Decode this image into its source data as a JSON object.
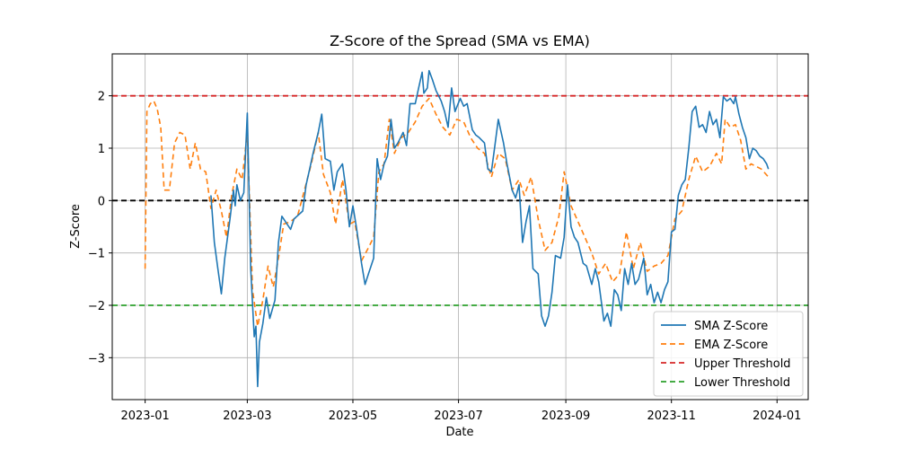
{
  "chart_data": {
    "type": "line",
    "title": "Z-Score of the Spread (SMA vs EMA)",
    "xlabel": "Date",
    "ylabel": "Z-Score",
    "xlim": [
      "2022-12-13",
      "2024-01-19"
    ],
    "ylim": [
      -3.8,
      2.8
    ],
    "x_ticks": [
      "2023-01-01",
      "2023-03-01",
      "2023-05-01",
      "2023-07-01",
      "2023-09-01",
      "2023-11-01",
      "2024-01-01"
    ],
    "x_tick_labels": [
      "2023-01",
      "2023-03",
      "2023-05",
      "2023-07",
      "2023-09",
      "2023-11",
      "2024-01"
    ],
    "y_ticks": [
      -3,
      -2,
      -1,
      0,
      1,
      2
    ],
    "y_tick_labels": [
      "−3",
      "−2",
      "−1",
      "0",
      "1",
      "2"
    ],
    "grid": true,
    "legend_position": "bottom-right",
    "hlines": [
      {
        "name": "Upper Threshold",
        "y": 2,
        "color": "#d62728",
        "style": "dashed"
      },
      {
        "name": "Lower Threshold",
        "y": -2,
        "color": "#2ca02c",
        "style": "dashed"
      },
      {
        "name": "",
        "y": 0,
        "color": "#000000",
        "style": "dashed"
      }
    ],
    "series": [
      {
        "name": "SMA Z-Score",
        "color": "#1f77b4",
        "style": "solid",
        "points": [
          [
            "2023-02-08",
            0.1
          ],
          [
            "2023-02-10",
            -0.8
          ],
          [
            "2023-02-12",
            -1.3
          ],
          [
            "2023-02-14",
            -1.78
          ],
          [
            "2023-02-16",
            -1.1
          ],
          [
            "2023-02-19",
            -0.35
          ],
          [
            "2023-02-21",
            0.2
          ],
          [
            "2023-02-22",
            -0.1
          ],
          [
            "2023-02-23",
            0.3
          ],
          [
            "2023-02-25",
            0.0
          ],
          [
            "2023-02-27",
            0.15
          ],
          [
            "2023-03-01",
            1.67
          ],
          [
            "2023-03-03",
            -1.3
          ],
          [
            "2023-03-05",
            -2.6
          ],
          [
            "2023-03-06",
            -2.4
          ],
          [
            "2023-03-07",
            -3.55
          ],
          [
            "2023-03-08",
            -2.7
          ],
          [
            "2023-03-10",
            -2.35
          ],
          [
            "2023-03-12",
            -1.85
          ],
          [
            "2023-03-14",
            -2.25
          ],
          [
            "2023-03-17",
            -1.9
          ],
          [
            "2023-03-19",
            -0.8
          ],
          [
            "2023-03-21",
            -0.3
          ],
          [
            "2023-03-23",
            -0.4
          ],
          [
            "2023-03-26",
            -0.55
          ],
          [
            "2023-03-28",
            -0.35
          ],
          [
            "2023-04-02",
            -0.2
          ],
          [
            "2023-04-04",
            0.3
          ],
          [
            "2023-04-06",
            0.6
          ],
          [
            "2023-04-08",
            0.9
          ],
          [
            "2023-04-11",
            1.3
          ],
          [
            "2023-04-13",
            1.65
          ],
          [
            "2023-04-15",
            0.8
          ],
          [
            "2023-04-18",
            0.75
          ],
          [
            "2023-04-20",
            0.2
          ],
          [
            "2023-04-22",
            0.55
          ],
          [
            "2023-04-25",
            0.7
          ],
          [
            "2023-04-27",
            0.2
          ],
          [
            "2023-04-29",
            -0.5
          ],
          [
            "2023-05-01",
            -0.1
          ],
          [
            "2023-05-03",
            -0.5
          ],
          [
            "2023-05-06",
            -1.2
          ],
          [
            "2023-05-08",
            -1.6
          ],
          [
            "2023-05-10",
            -1.4
          ],
          [
            "2023-05-13",
            -1.1
          ],
          [
            "2023-05-15",
            0.8
          ],
          [
            "2023-05-17",
            0.4
          ],
          [
            "2023-05-19",
            0.7
          ],
          [
            "2023-05-21",
            0.85
          ],
          [
            "2023-05-23",
            1.55
          ],
          [
            "2023-05-25",
            1.0
          ],
          [
            "2023-05-27",
            1.1
          ],
          [
            "2023-05-30",
            1.3
          ],
          [
            "2023-06-01",
            1.05
          ],
          [
            "2023-06-03",
            1.85
          ],
          [
            "2023-06-06",
            1.85
          ],
          [
            "2023-06-08",
            2.15
          ],
          [
            "2023-06-10",
            2.45
          ],
          [
            "2023-06-11",
            2.05
          ],
          [
            "2023-06-13",
            2.15
          ],
          [
            "2023-06-14",
            2.48
          ],
          [
            "2023-06-16",
            2.3
          ],
          [
            "2023-06-18",
            2.1
          ],
          [
            "2023-06-21",
            1.9
          ],
          [
            "2023-06-23",
            1.7
          ],
          [
            "2023-06-25",
            1.4
          ],
          [
            "2023-06-27",
            2.15
          ],
          [
            "2023-06-29",
            1.7
          ],
          [
            "2023-07-02",
            1.95
          ],
          [
            "2023-07-04",
            1.8
          ],
          [
            "2023-07-06",
            1.85
          ],
          [
            "2023-07-09",
            1.35
          ],
          [
            "2023-07-11",
            1.25
          ],
          [
            "2023-07-13",
            1.2
          ],
          [
            "2023-07-16",
            1.1
          ],
          [
            "2023-07-18",
            0.6
          ],
          [
            "2023-07-20",
            0.55
          ],
          [
            "2023-07-22",
            1.05
          ],
          [
            "2023-07-24",
            1.55
          ],
          [
            "2023-07-27",
            1.1
          ],
          [
            "2023-07-29",
            0.7
          ],
          [
            "2023-08-01",
            0.2
          ],
          [
            "2023-08-03",
            0.05
          ],
          [
            "2023-08-05",
            0.3
          ],
          [
            "2023-08-07",
            -0.8
          ],
          [
            "2023-08-09",
            -0.4
          ],
          [
            "2023-08-11",
            -0.1
          ],
          [
            "2023-08-13",
            -1.3
          ],
          [
            "2023-08-16",
            -1.4
          ],
          [
            "2023-08-18",
            -2.2
          ],
          [
            "2023-08-20",
            -2.4
          ],
          [
            "2023-08-22",
            -2.2
          ],
          [
            "2023-08-24",
            -1.75
          ],
          [
            "2023-08-26",
            -1.05
          ],
          [
            "2023-08-29",
            -1.1
          ],
          [
            "2023-08-31",
            -0.7
          ],
          [
            "2023-09-02",
            0.3
          ],
          [
            "2023-09-04",
            -0.5
          ],
          [
            "2023-09-06",
            -0.7
          ],
          [
            "2023-09-08",
            -0.8
          ],
          [
            "2023-09-11",
            -1.2
          ],
          [
            "2023-09-13",
            -1.25
          ],
          [
            "2023-09-16",
            -1.6
          ],
          [
            "2023-09-18",
            -1.3
          ],
          [
            "2023-09-20",
            -1.55
          ],
          [
            "2023-09-23",
            -2.3
          ],
          [
            "2023-09-25",
            -2.15
          ],
          [
            "2023-09-27",
            -2.4
          ],
          [
            "2023-09-29",
            -1.7
          ],
          [
            "2023-10-01",
            -1.8
          ],
          [
            "2023-10-03",
            -2.1
          ],
          [
            "2023-10-05",
            -1.3
          ],
          [
            "2023-10-07",
            -1.6
          ],
          [
            "2023-10-09",
            -1.2
          ],
          [
            "2023-10-11",
            -1.6
          ],
          [
            "2023-10-13",
            -1.5
          ],
          [
            "2023-10-16",
            -1.1
          ],
          [
            "2023-10-18",
            -1.8
          ],
          [
            "2023-10-20",
            -1.6
          ],
          [
            "2023-10-22",
            -1.95
          ],
          [
            "2023-10-24",
            -1.75
          ],
          [
            "2023-10-26",
            -1.95
          ],
          [
            "2023-10-28",
            -1.7
          ],
          [
            "2023-10-30",
            -1.55
          ],
          [
            "2023-11-01",
            -0.6
          ],
          [
            "2023-11-03",
            -0.55
          ],
          [
            "2023-11-05",
            0.1
          ],
          [
            "2023-11-07",
            0.3
          ],
          [
            "2023-11-09",
            0.4
          ],
          [
            "2023-11-11",
            1.0
          ],
          [
            "2023-11-13",
            1.7
          ],
          [
            "2023-11-15",
            1.8
          ],
          [
            "2023-11-17",
            1.4
          ],
          [
            "2023-11-19",
            1.45
          ],
          [
            "2023-11-21",
            1.3
          ],
          [
            "2023-11-23",
            1.7
          ],
          [
            "2023-11-25",
            1.45
          ],
          [
            "2023-11-27",
            1.55
          ],
          [
            "2023-11-29",
            1.2
          ],
          [
            "2023-12-01",
            1.98
          ],
          [
            "2023-12-03",
            1.9
          ],
          [
            "2023-12-05",
            1.95
          ],
          [
            "2023-12-07",
            1.85
          ],
          [
            "2023-12-08",
            1.98
          ],
          [
            "2023-12-10",
            1.65
          ],
          [
            "2023-12-12",
            1.4
          ],
          [
            "2023-12-14",
            1.2
          ],
          [
            "2023-12-16",
            0.8
          ],
          [
            "2023-12-18",
            1.0
          ],
          [
            "2023-12-20",
            0.95
          ],
          [
            "2023-12-22",
            0.85
          ],
          [
            "2023-12-24",
            0.8
          ],
          [
            "2023-12-26",
            0.7
          ],
          [
            "2023-12-27",
            0.6
          ]
        ]
      },
      {
        "name": "EMA Z-Score",
        "color": "#ff7f0e",
        "style": "dashed",
        "points": [
          [
            "2023-01-01",
            -1.3
          ],
          [
            "2023-01-02",
            1.7
          ],
          [
            "2023-01-04",
            1.85
          ],
          [
            "2023-01-06",
            1.9
          ],
          [
            "2023-01-08",
            1.75
          ],
          [
            "2023-01-10",
            1.4
          ],
          [
            "2023-01-12",
            0.2
          ],
          [
            "2023-01-15",
            0.2
          ],
          [
            "2023-01-18",
            1.1
          ],
          [
            "2023-01-21",
            1.3
          ],
          [
            "2023-01-24",
            1.25
          ],
          [
            "2023-01-27",
            0.6
          ],
          [
            "2023-01-30",
            1.1
          ],
          [
            "2023-02-02",
            0.6
          ],
          [
            "2023-02-05",
            0.55
          ],
          [
            "2023-02-08",
            -0.15
          ],
          [
            "2023-02-11",
            0.2
          ],
          [
            "2023-02-14",
            -0.2
          ],
          [
            "2023-02-17",
            -0.7
          ],
          [
            "2023-02-20",
            0.1
          ],
          [
            "2023-02-23",
            0.6
          ],
          [
            "2023-02-26",
            0.4
          ],
          [
            "2023-03-01",
            1.3
          ],
          [
            "2023-03-04",
            -1.7
          ],
          [
            "2023-03-07",
            -2.4
          ],
          [
            "2023-03-10",
            -1.9
          ],
          [
            "2023-03-13",
            -1.25
          ],
          [
            "2023-03-16",
            -1.65
          ],
          [
            "2023-03-19",
            -1.1
          ],
          [
            "2023-03-22",
            -0.45
          ],
          [
            "2023-03-26",
            -0.4
          ],
          [
            "2023-03-30",
            -0.3
          ],
          [
            "2023-04-03",
            0.2
          ],
          [
            "2023-04-07",
            0.7
          ],
          [
            "2023-04-11",
            1.3
          ],
          [
            "2023-04-14",
            0.5
          ],
          [
            "2023-04-18",
            0.15
          ],
          [
            "2023-04-21",
            -0.45
          ],
          [
            "2023-04-25",
            0.4
          ],
          [
            "2023-04-29",
            -0.45
          ],
          [
            "2023-05-02",
            -0.4
          ],
          [
            "2023-05-06",
            -1.15
          ],
          [
            "2023-05-10",
            -0.9
          ],
          [
            "2023-05-13",
            -0.7
          ],
          [
            "2023-05-16",
            0.55
          ],
          [
            "2023-05-19",
            0.7
          ],
          [
            "2023-05-22",
            1.55
          ],
          [
            "2023-05-25",
            0.9
          ],
          [
            "2023-05-29",
            1.2
          ],
          [
            "2023-06-02",
            1.3
          ],
          [
            "2023-06-06",
            1.5
          ],
          [
            "2023-06-10",
            1.8
          ],
          [
            "2023-06-14",
            1.95
          ],
          [
            "2023-06-18",
            1.65
          ],
          [
            "2023-06-22",
            1.4
          ],
          [
            "2023-06-26",
            1.25
          ],
          [
            "2023-06-30",
            1.55
          ],
          [
            "2023-07-04",
            1.5
          ],
          [
            "2023-07-08",
            1.2
          ],
          [
            "2023-07-12",
            1.0
          ],
          [
            "2023-07-16",
            0.9
          ],
          [
            "2023-07-20",
            0.45
          ],
          [
            "2023-07-24",
            0.9
          ],
          [
            "2023-07-28",
            0.8
          ],
          [
            "2023-08-01",
            0.2
          ],
          [
            "2023-08-05",
            0.4
          ],
          [
            "2023-08-08",
            0.1
          ],
          [
            "2023-08-12",
            0.45
          ],
          [
            "2023-08-16",
            -0.35
          ],
          [
            "2023-08-20",
            -0.95
          ],
          [
            "2023-08-24",
            -0.8
          ],
          [
            "2023-08-28",
            -0.3
          ],
          [
            "2023-08-31",
            0.55
          ],
          [
            "2023-09-04",
            -0.1
          ],
          [
            "2023-09-08",
            -0.4
          ],
          [
            "2023-09-12",
            -0.7
          ],
          [
            "2023-09-16",
            -1.0
          ],
          [
            "2023-09-20",
            -1.4
          ],
          [
            "2023-09-24",
            -1.2
          ],
          [
            "2023-09-28",
            -1.55
          ],
          [
            "2023-10-02",
            -1.4
          ],
          [
            "2023-10-06",
            -0.6
          ],
          [
            "2023-10-10",
            -1.3
          ],
          [
            "2023-10-14",
            -0.8
          ],
          [
            "2023-10-18",
            -1.35
          ],
          [
            "2023-10-22",
            -1.25
          ],
          [
            "2023-10-26",
            -1.2
          ],
          [
            "2023-10-30",
            -1.05
          ],
          [
            "2023-11-03",
            -0.35
          ],
          [
            "2023-11-07",
            -0.2
          ],
          [
            "2023-11-11",
            0.4
          ],
          [
            "2023-11-15",
            0.85
          ],
          [
            "2023-11-19",
            0.55
          ],
          [
            "2023-11-23",
            0.65
          ],
          [
            "2023-11-27",
            0.9
          ],
          [
            "2023-11-30",
            0.7
          ],
          [
            "2023-12-02",
            1.55
          ],
          [
            "2023-12-05",
            1.4
          ],
          [
            "2023-12-08",
            1.45
          ],
          [
            "2023-12-11",
            1.15
          ],
          [
            "2023-12-14",
            0.6
          ],
          [
            "2023-12-17",
            0.7
          ],
          [
            "2023-12-20",
            0.65
          ],
          [
            "2023-12-23",
            0.6
          ],
          [
            "2023-12-27",
            0.45
          ]
        ]
      }
    ],
    "legend": [
      {
        "label": "SMA Z-Score",
        "color": "#1f77b4",
        "style": "solid"
      },
      {
        "label": "EMA Z-Score",
        "color": "#ff7f0e",
        "style": "dashed"
      },
      {
        "label": "Upper Threshold",
        "color": "#d62728",
        "style": "dashed"
      },
      {
        "label": "Lower Threshold",
        "color": "#2ca02c",
        "style": "dashed"
      }
    ]
  }
}
